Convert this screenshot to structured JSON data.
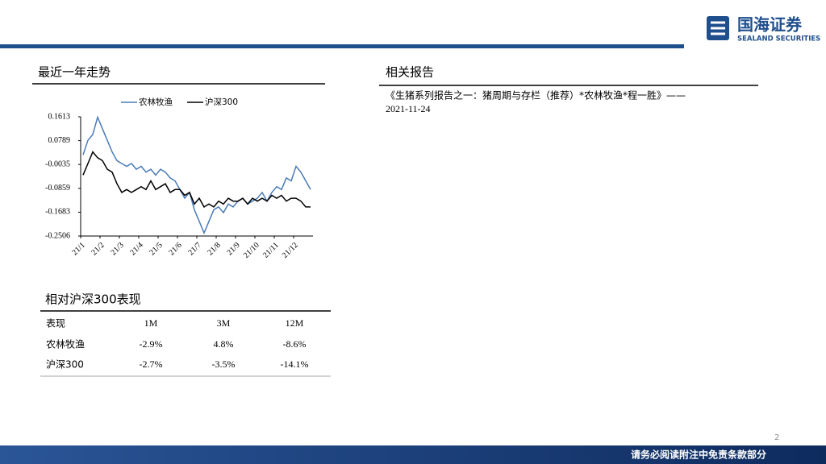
{
  "header": {
    "logo_cn": "国海证券",
    "logo_en": "SEALAND SECURITIES"
  },
  "trend_title": "最近一年走势",
  "chart_data": {
    "type": "line",
    "categories": [
      "21/1",
      null,
      null,
      null,
      "21/2",
      null,
      null,
      null,
      "21/3",
      null,
      null,
      null,
      "21/4",
      null,
      null,
      null,
      "21/5",
      null,
      null,
      null,
      "21/6",
      null,
      null,
      null,
      "21/7",
      null,
      null,
      null,
      "21/8",
      null,
      null,
      null,
      "21/9",
      null,
      null,
      null,
      "21/10",
      null,
      null,
      null,
      "21/11",
      null,
      null,
      null,
      "21/12",
      null,
      null,
      null
    ],
    "series": [
      {
        "name": "农林牧渔",
        "color": "#4a7bb7",
        "values": [
          0.03,
          0.08,
          0.1,
          0.16,
          0.12,
          0.08,
          0.04,
          0.01,
          0.0,
          -0.01,
          0.0,
          -0.02,
          -0.01,
          -0.03,
          -0.02,
          -0.04,
          -0.02,
          -0.03,
          -0.05,
          -0.06,
          -0.09,
          -0.12,
          -0.1,
          -0.16,
          -0.2,
          -0.24,
          -0.2,
          -0.16,
          -0.15,
          -0.17,
          -0.14,
          -0.15,
          -0.13,
          -0.12,
          -0.14,
          -0.13,
          -0.12,
          -0.1,
          -0.13,
          -0.1,
          -0.08,
          -0.09,
          -0.05,
          -0.06,
          -0.01,
          -0.03,
          -0.06,
          -0.09
        ]
      },
      {
        "name": "沪深300",
        "color": "#000000",
        "values": [
          -0.04,
          0.0,
          0.04,
          0.02,
          0.01,
          -0.02,
          -0.03,
          -0.07,
          -0.1,
          -0.09,
          -0.1,
          -0.09,
          -0.08,
          -0.09,
          -0.06,
          -0.09,
          -0.08,
          -0.07,
          -0.1,
          -0.09,
          -0.09,
          -0.11,
          -0.1,
          -0.14,
          -0.12,
          -0.15,
          -0.14,
          -0.15,
          -0.13,
          -0.14,
          -0.12,
          -0.13,
          -0.13,
          -0.12,
          -0.14,
          -0.12,
          -0.13,
          -0.12,
          -0.13,
          -0.11,
          -0.12,
          -0.11,
          -0.13,
          -0.12,
          -0.12,
          -0.13,
          -0.15,
          -0.15
        ]
      }
    ],
    "ylim": [
      -0.2506,
      0.1613
    ],
    "yticks": [
      0.1613,
      0.0789,
      -0.0035,
      -0.0859,
      -0.1683,
      -0.2506
    ],
    "legend": "top"
  },
  "perf_title": "相对沪深300表现",
  "table": {
    "header": [
      "表现",
      "1M",
      "3M",
      "12M"
    ],
    "rows": [
      [
        "农林牧渔",
        "-2.9%",
        "4.8%",
        "-8.6%"
      ],
      [
        "沪深300",
        "-2.7%",
        "-3.5%",
        "-14.1%"
      ]
    ]
  },
  "reports_title": "相关报告",
  "reports": [
    {
      "title": "《生猪系列报告之一：猪周期与存栏（推荐）*农林牧渔*程一胜》——",
      "date": "2021-11-24"
    }
  ],
  "page_number": "2",
  "footer": "请务必阅读附注中免责条款部分"
}
